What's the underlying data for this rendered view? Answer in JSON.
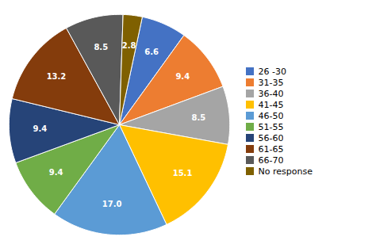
{
  "chart_data": {
    "type": "pie",
    "categories": [
      "26 -30",
      "31-35",
      "36-40",
      "41-45",
      "46-50",
      "51-55",
      "56-60",
      "61-65",
      "66-70",
      "No response"
    ],
    "values": [
      6.6,
      9.4,
      8.5,
      15.1,
      17.0,
      9.4,
      9.4,
      13.2,
      8.5,
      2.8
    ],
    "value_labels": [
      "6.6",
      "9.4",
      "8.5",
      "15.1",
      "17.0",
      "9.4",
      "9.4",
      "13.2",
      "8.5",
      "2.8"
    ],
    "colors": [
      "#4472C4",
      "#ED7D31",
      "#A5A5A5",
      "#FFC000",
      "#5B9BD5",
      "#70AD47",
      "#264478",
      "#843C0C",
      "#595959",
      "#7F6000"
    ],
    "data_labels": true,
    "legend": "right"
  }
}
